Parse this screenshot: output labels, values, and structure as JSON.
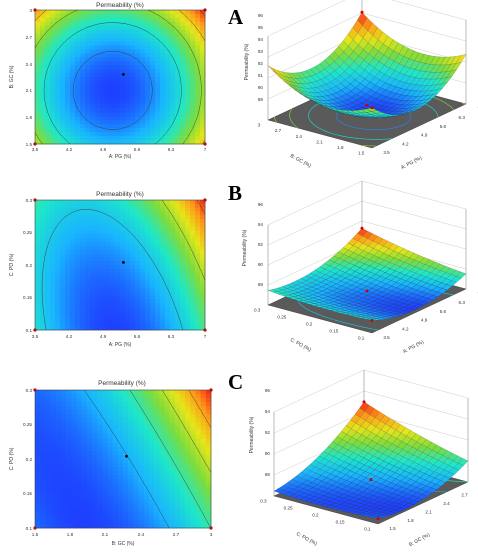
{
  "chart_data": [
    {
      "panel": "A",
      "type": "contour",
      "title": "Permeability (%)",
      "xlabel": "A: PG (%)",
      "ylabel": "B: GC (%)",
      "xticks": [
        "3.5",
        "4.2",
        "4.9",
        "5.6",
        "6.3",
        "7"
      ],
      "yticks": [
        "1.5",
        "1.8",
        "2.1",
        "2.4",
        "2.7",
        "3"
      ],
      "xlim": [
        3.5,
        7
      ],
      "ylim": [
        1.5,
        3
      ],
      "model": {
        "x0": 5.1,
        "y0": 2.1,
        "zmin": 89.5,
        "ax": 0.75,
        "ay": 2.6,
        "b": 0.0
      },
      "contour_levels": [
        90,
        91,
        92,
        93,
        94,
        95
      ]
    },
    {
      "panel": "A",
      "type": "surface",
      "zlabel": "Permeability (%)",
      "xlabel": "A: PG (%)",
      "ylabel": "B: GC (%)",
      "zticks": [
        "89",
        "90",
        "91",
        "92",
        "93",
        "94",
        "95",
        "96"
      ],
      "zlim": [
        89,
        96
      ],
      "xticks": [
        "3.5",
        "4.2",
        "4.9",
        "5.6",
        "6.3",
        "7"
      ],
      "yticks": [
        "1.5",
        "1.8",
        "2.1",
        "2.4",
        "2.7",
        "3"
      ]
    },
    {
      "panel": "B",
      "type": "contour",
      "title": "Permeability (%)",
      "xlabel": "A: PG (%)",
      "ylabel": "C: PO (%)",
      "xticks": [
        "3.5",
        "4.2",
        "4.9",
        "5.6",
        "6.3",
        "7"
      ],
      "yticks": [
        "0.1",
        "0.15",
        "0.2",
        "0.25",
        "0.3"
      ],
      "xlim": [
        3.5,
        7
      ],
      "ylim": [
        0.1,
        0.3
      ],
      "model": {
        "x0": 5.2,
        "y0": 0.08,
        "zmin": 88.3,
        "ax": 0.35,
        "ay": 20,
        "b": 2.2
      },
      "contour_levels": [
        88,
        89,
        90,
        91,
        92,
        93,
        94,
        95
      ]
    },
    {
      "panel": "B",
      "type": "surface",
      "zlabel": "Permeability (%)",
      "xlabel": "A: PG (%)",
      "ylabel": "C: PO (%)",
      "zticks": [
        "88",
        "90",
        "92",
        "94",
        "96"
      ],
      "zlim": [
        88,
        96
      ],
      "xticks": [
        "3.5",
        "4.2",
        "4.9",
        "5.6",
        "6.3",
        "7"
      ],
      "yticks": [
        "0.1",
        "0.15",
        "0.2",
        "0.25",
        "0.3"
      ]
    },
    {
      "panel": "C",
      "type": "contour",
      "title": "Permeability (%)",
      "xlabel": "B: GC (%)",
      "ylabel": "C: PO (%)",
      "xticks": [
        "1.5",
        "1.8",
        "2.1",
        "2.4",
        "2.7",
        "3"
      ],
      "yticks": [
        "0.1",
        "0.15",
        "0.2",
        "0.25",
        "0.3"
      ],
      "xlim": [
        1.5,
        3
      ],
      "ylim": [
        0.1,
        0.3
      ],
      "model": {
        "x0": 2.0,
        "y0": 0.08,
        "zmin": 88.2,
        "ax": 1.6,
        "ay": 20,
        "b": 10
      },
      "contour_levels": [
        88,
        89,
        90,
        91,
        92,
        93,
        94,
        95
      ]
    },
    {
      "panel": "C",
      "type": "surface",
      "zlabel": "Permeability (%)",
      "xlabel": "B: GC (%)",
      "ylabel": "C: PO (%)",
      "zticks": [
        "88",
        "90",
        "92",
        "94",
        "96"
      ],
      "zlim": [
        88,
        96
      ],
      "xticks": [
        "1.5",
        "1.8",
        "2.1",
        "2.4",
        "2.7",
        "3"
      ],
      "yticks": [
        "0.1",
        "0.15",
        "0.2",
        "0.25",
        "0.3"
      ]
    }
  ],
  "panel_tags": [
    "A",
    "B",
    "C"
  ],
  "colors": {
    "colormap": [
      "#1e40ff",
      "#19b4ff",
      "#1ee7c8",
      "#7ddc3c",
      "#e6e619",
      "#ff9619",
      "#f01e14"
    ],
    "contour_line": "#3a3a3a",
    "base_plane": "#5a5a5a",
    "design_point": "#cc0000"
  }
}
